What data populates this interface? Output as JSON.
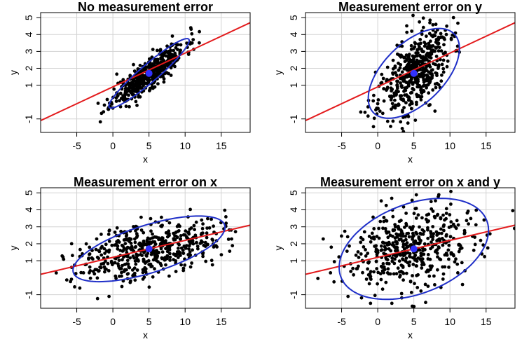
{
  "chart_data": [
    {
      "type": "scatter",
      "title": "No measurement error",
      "xlabel": "x",
      "ylabel": "y",
      "xlim": [
        -10,
        19
      ],
      "ylim": [
        -1.8,
        5.3
      ],
      "xticks": [
        -5,
        0,
        5,
        10,
        15
      ],
      "yticks": [
        -1,
        1,
        2,
        3,
        4,
        5
      ],
      "grid": true,
      "cloud": {
        "center": [
          5,
          1.7
        ],
        "sd_x": 2.5,
        "sd_y": 0.9,
        "corr": 0.86,
        "n": 500,
        "seed": 11
      },
      "mean_point": {
        "x": 5,
        "y": 1.7
      },
      "ellipse": {
        "center": [
          5,
          1.7
        ],
        "angle_deg": 19.5,
        "rx": 5.9,
        "ry": 0.64
      },
      "line": {
        "intercept": 0.9,
        "slope": 0.2
      },
      "colors": {
        "points": "#000000",
        "line": "#e31a1c",
        "ellipse": "#1f2fc8",
        "mean": "#3232ff",
        "grid": "#d3d3d3"
      }
    },
    {
      "type": "scatter",
      "title": "Measurement error on y",
      "xlabel": "x",
      "ylabel": "y",
      "xlim": [
        -10,
        19
      ],
      "ylim": [
        -1.8,
        5.3
      ],
      "xticks": [
        -5,
        0,
        5,
        10,
        15
      ],
      "yticks": [
        -1,
        1,
        2,
        3,
        4,
        5
      ],
      "grid": true,
      "cloud": {
        "center": [
          5,
          1.7
        ],
        "sd_x": 2.5,
        "sd_y": 1.35,
        "corr": 0.55,
        "n": 500,
        "seed": 23
      },
      "mean_point": {
        "x": 5,
        "y": 1.7
      },
      "ellipse": {
        "center": [
          5,
          1.7
        ],
        "angle_deg": 14.8,
        "rx": 6.5,
        "ry": 2.15
      },
      "line": {
        "intercept": 0.9,
        "slope": 0.2
      },
      "colors": {
        "points": "#000000",
        "line": "#e31a1c",
        "ellipse": "#1f2fc8",
        "mean": "#3232ff",
        "grid": "#d3d3d3"
      }
    },
    {
      "type": "scatter",
      "title": "Measurement error on x",
      "xlabel": "x",
      "ylabel": "y",
      "xlim": [
        -10,
        19
      ],
      "ylim": [
        -1.8,
        5.3
      ],
      "xticks": [
        -5,
        0,
        5,
        10,
        15
      ],
      "yticks": [
        -1,
        1,
        2,
        3,
        4,
        5
      ],
      "grid": true,
      "cloud": {
        "center": [
          5,
          1.7
        ],
        "sd_x": 5.0,
        "sd_y": 0.9,
        "corr": 0.45,
        "n": 500,
        "seed": 37
      },
      "mean_point": {
        "x": 5,
        "y": 1.7
      },
      "ellipse": {
        "center": [
          5,
          1.7
        ],
        "angle_deg": 7.0,
        "rx": 10.6,
        "ry": 1.45
      },
      "line": {
        "intercept": 1.2,
        "slope": 0.1
      },
      "colors": {
        "points": "#000000",
        "line": "#e31a1c",
        "ellipse": "#1f2fc8",
        "mean": "#3232ff",
        "grid": "#d3d3d3"
      }
    },
    {
      "type": "scatter",
      "title": "Measurement error on x and y",
      "xlabel": "x",
      "ylabel": "y",
      "xlim": [
        -10,
        19
      ],
      "ylim": [
        -1.8,
        5.3
      ],
      "xticks": [
        -5,
        0,
        5,
        10,
        15
      ],
      "yticks": [
        -1,
        1,
        2,
        3,
        4,
        5
      ],
      "grid": true,
      "cloud": {
        "center": [
          5,
          1.7
        ],
        "sd_x": 5.0,
        "sd_y": 1.35,
        "corr": 0.3,
        "n": 500,
        "seed": 53
      },
      "mean_point": {
        "x": 5,
        "y": 1.7
      },
      "ellipse": {
        "center": [
          5,
          1.7
        ],
        "angle_deg": 6.5,
        "rx": 10.4,
        "ry": 2.75
      },
      "line": {
        "intercept": 1.2,
        "slope": 0.1
      },
      "colors": {
        "points": "#000000",
        "line": "#e31a1c",
        "ellipse": "#1f2fc8",
        "mean": "#3232ff",
        "grid": "#d3d3d3"
      }
    }
  ]
}
